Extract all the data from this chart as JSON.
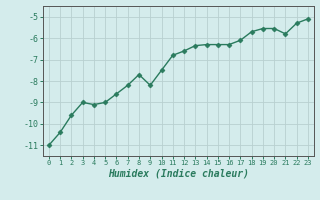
{
  "x": [
    0,
    1,
    2,
    3,
    4,
    5,
    6,
    7,
    8,
    9,
    10,
    11,
    12,
    13,
    14,
    15,
    16,
    17,
    18,
    19,
    20,
    21,
    22,
    23
  ],
  "y": [
    -11.0,
    -10.4,
    -9.6,
    -9.0,
    -9.1,
    -9.0,
    -8.6,
    -8.2,
    -7.7,
    -8.2,
    -7.5,
    -6.8,
    -6.6,
    -6.35,
    -6.3,
    -6.3,
    -6.3,
    -6.1,
    -5.7,
    -5.55,
    -5.55,
    -5.8,
    -5.3,
    -5.1
  ],
  "xlabel": "Humidex (Indice chaleur)",
  "xlim": [
    -0.5,
    23.5
  ],
  "ylim": [
    -11.5,
    -4.5
  ],
  "yticks": [
    -11,
    -10,
    -9,
    -8,
    -7,
    -6,
    -5
  ],
  "xticks": [
    0,
    1,
    2,
    3,
    4,
    5,
    6,
    7,
    8,
    9,
    10,
    11,
    12,
    13,
    14,
    15,
    16,
    17,
    18,
    19,
    20,
    21,
    22,
    23
  ],
  "line_color": "#2a7b5e",
  "marker": "D",
  "marker_size": 2.5,
  "bg_color": "#d4ecec",
  "grid_color": "#b8d0d0",
  "line_width": 1.0,
  "tick_color": "#2a7b5e",
  "label_color": "#2a7b5e"
}
